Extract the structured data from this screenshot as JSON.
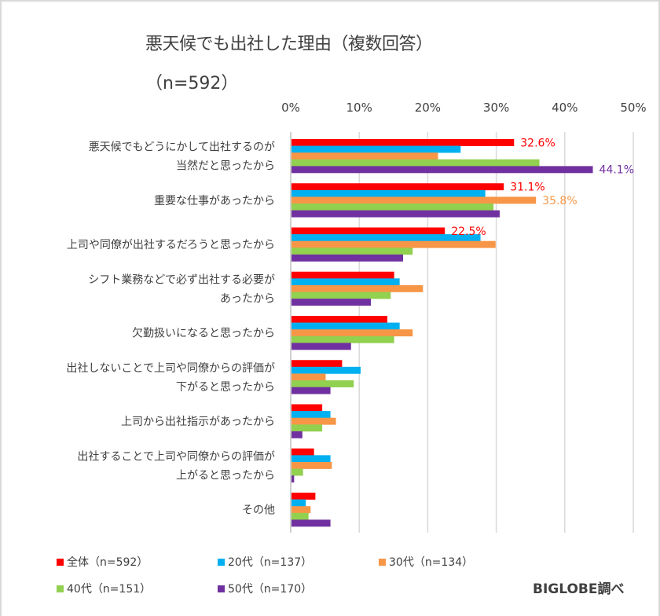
{
  "chart_data": {
    "type": "bar",
    "orientation": "horizontal",
    "title": "悪天候でも出社した理由（複数回答）",
    "subtitle": "（n=592）",
    "xlabel": "",
    "ylabel": "",
    "xlim": [
      0,
      50
    ],
    "x_ticks": [
      "0%",
      "10%",
      "20%",
      "30%",
      "40%",
      "50%"
    ],
    "grid": true,
    "legend_position": "bottom",
    "categories": [
      [
        "悪天候でもどうにかして出社するのが",
        "当然だと思ったから"
      ],
      [
        "重要な仕事があったから"
      ],
      [
        "上司や同僚が出社するだろうと思ったから"
      ],
      [
        "シフト業務などで必ず出社する必要が",
        "あったから"
      ],
      [
        "欠勤扱いになると思ったから"
      ],
      [
        "出社しないことで上司や同僚からの評価が",
        "下がると思ったから"
      ],
      [
        "上司から出社指示があったから"
      ],
      [
        "出社することで上司や同僚からの評価が",
        "上がると思ったから"
      ],
      [
        "その他"
      ]
    ],
    "series": [
      {
        "name": "全体（n=592）",
        "color": "#ff0000",
        "values": [
          32.6,
          31.1,
          22.5,
          15.1,
          14.1,
          7.5,
          4.6,
          3.4,
          3.6
        ]
      },
      {
        "name": "20代（n=137）",
        "color": "#00b0f0",
        "values": [
          24.8,
          28.4,
          27.7,
          15.9,
          15.9,
          10.2,
          5.8,
          5.8,
          2.2
        ]
      },
      {
        "name": "30代（n=134）",
        "color": "#f79646",
        "values": [
          21.5,
          35.8,
          29.9,
          19.3,
          17.8,
          5.1,
          6.6,
          6.0,
          2.9
        ]
      },
      {
        "name": "40代（n=151）",
        "color": "#92d050",
        "values": [
          36.3,
          29.6,
          17.8,
          14.6,
          15.1,
          9.2,
          4.6,
          1.8,
          2.6
        ]
      },
      {
        "name": "50代（n=170）",
        "color": "#7030a0",
        "values": [
          44.1,
          30.5,
          16.4,
          11.7,
          8.8,
          5.8,
          1.7,
          0.5,
          5.8
        ]
      }
    ],
    "data_labels": [
      {
        "series": 0,
        "category": 0,
        "text": "32.6%"
      },
      {
        "series": 4,
        "category": 0,
        "text": "44.1%"
      },
      {
        "series": 0,
        "category": 1,
        "text": "31.1%"
      },
      {
        "series": 2,
        "category": 1,
        "text": "35.8%"
      },
      {
        "series": 0,
        "category": 2,
        "text": "22.5%"
      }
    ]
  },
  "source": "BIGLOBE調べ"
}
